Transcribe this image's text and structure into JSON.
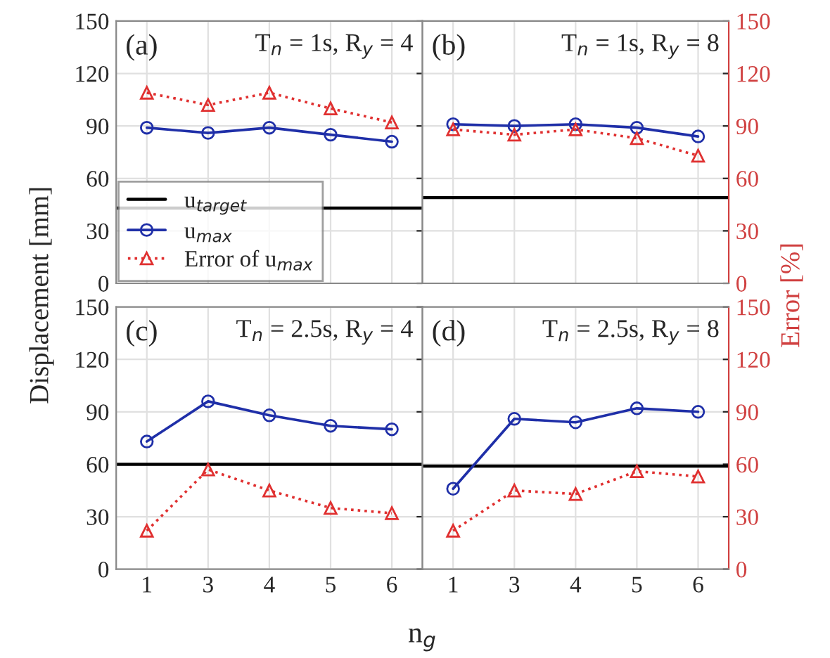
{
  "chart_data": [
    {
      "type": "line",
      "categories": [
        "1",
        "3",
        "4",
        "5",
        "6"
      ],
      "ylim": [
        0,
        150
      ],
      "yticks": [
        0,
        30,
        60,
        90,
        120,
        150
      ],
      "ylabel": "Displacement [mm]",
      "xlabel": "n$_{g}$",
      "grid": true,
      "legend": "bottom left",
      "tick_labels": "y",
      "annotations": [
        "(a)",
        "T$_{n}$ = 1s, R$_{y}$ = 4"
      ],
      "ref_lines": [
        {
          "axis": "y",
          "value": 43,
          "label": "u$_{target}$",
          "color": "#000000"
        }
      ],
      "series": [
        {
          "name": "u$_{max}$",
          "color": "#1f2fa8",
          "marker": "circle",
          "line_style": "solid",
          "values": [
            89,
            86,
            89,
            85,
            81
          ]
        },
        {
          "name": "Error of u$_{max}$",
          "color": "#e03030",
          "marker": "triangle",
          "line_style": "dotted",
          "values": [
            109,
            102,
            109,
            100,
            92
          ]
        }
      ]
    },
    {
      "type": "line",
      "categories": [
        "1",
        "3",
        "4",
        "5",
        "6"
      ],
      "ylim": [
        0,
        150
      ],
      "yticks": [
        0,
        30,
        60,
        90,
        120,
        150
      ],
      "y2label": "Error [%]",
      "grid": true,
      "tick_labels": "y",
      "annotations": [
        "(b)",
        "T$_{n}$ = 1s, R$_{y}$ = 8"
      ],
      "ref_lines": [
        {
          "axis": "y",
          "value": 49,
          "color": "#000000"
        }
      ],
      "series": [
        {
          "color": "#1f2fa8",
          "marker": "circle",
          "line_style": "solid",
          "values": [
            91,
            90,
            91,
            89,
            84
          ]
        },
        {
          "color": "#e03030",
          "marker": "triangle",
          "line_style": "dotted",
          "values": [
            88,
            85,
            88,
            83,
            73
          ]
        }
      ]
    },
    {
      "type": "line",
      "categories": [
        "1",
        "3",
        "4",
        "5",
        "6"
      ],
      "ylim": [
        0,
        150
      ],
      "yticks": [
        0,
        30,
        60,
        90,
        120,
        150
      ],
      "grid": true,
      "annotations": [
        "(c)",
        "T$_{n}$ = 2.5s, R$_{y}$ = 4"
      ],
      "ref_lines": [
        {
          "axis": "y",
          "value": 60,
          "color": "#000000"
        }
      ],
      "series": [
        {
          "color": "#1f2fa8",
          "marker": "circle",
          "line_style": "solid",
          "values": [
            73,
            96,
            88,
            82,
            80
          ]
        },
        {
          "color": "#e03030",
          "marker": "triangle",
          "line_style": "dotted",
          "values": [
            22,
            57,
            45,
            35,
            32
          ]
        }
      ]
    },
    {
      "type": "line",
      "categories": [
        "1",
        "3",
        "4",
        "5",
        "6"
      ],
      "ylim": [
        0,
        150
      ],
      "yticks": [
        0,
        30,
        60,
        90,
        120,
        150
      ],
      "grid": true,
      "annotations": [
        "(d)",
        "T$_{n}$ = 2.5s, R$_{y}$ = 8"
      ],
      "ref_lines": [
        {
          "axis": "y",
          "value": 59,
          "color": "#000000"
        }
      ],
      "series": [
        {
          "color": "#1f2fa8",
          "marker": "circle",
          "line_style": "solid",
          "values": [
            46,
            86,
            84,
            92,
            90
          ]
        },
        {
          "color": "#e03030",
          "marker": "triangle",
          "line_style": "dotted",
          "values": [
            22,
            45,
            43,
            56,
            53
          ]
        }
      ]
    }
  ]
}
